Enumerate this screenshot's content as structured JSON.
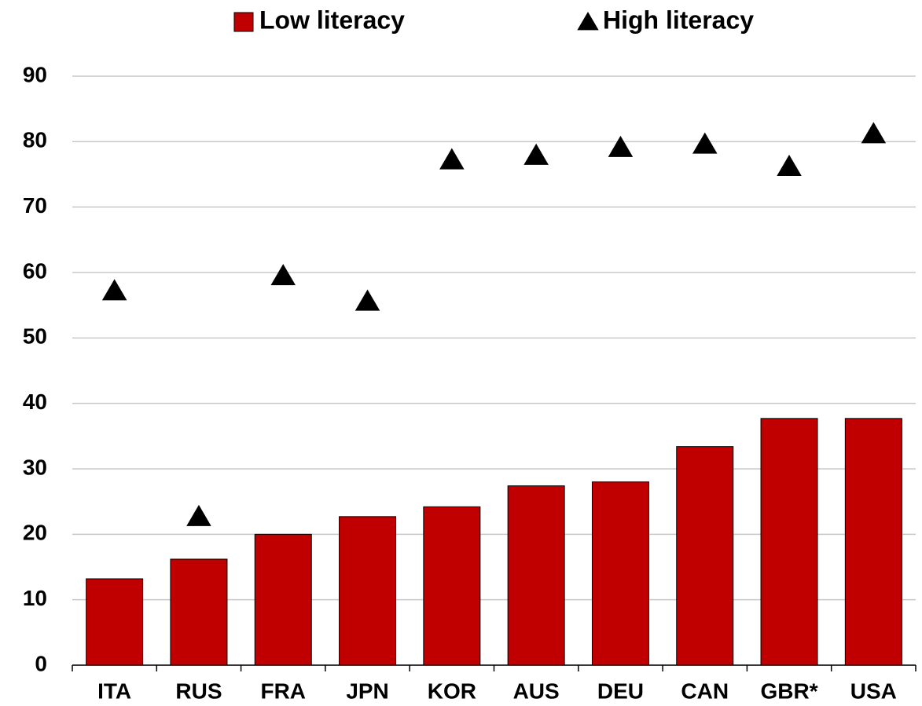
{
  "chart_data": {
    "type": "bar",
    "categories": [
      "ITA",
      "RUS",
      "FRA",
      "JPN",
      "KOR",
      "AUS",
      "DEU",
      "CAN",
      "GBR*",
      "USA"
    ],
    "series": [
      {
        "name": "Low literacy",
        "type": "bar",
        "color": "#c00000",
        "values": [
          13.2,
          16.2,
          20.0,
          22.7,
          24.2,
          27.4,
          28.0,
          33.4,
          37.7,
          37.7
        ]
      },
      {
        "name": "High literacy",
        "type": "scatter",
        "marker": "triangle",
        "color": "#000000",
        "values": [
          57.2,
          22.7,
          59.5,
          55.6,
          77.2,
          77.9,
          79.1,
          79.6,
          76.2,
          81.2
        ]
      }
    ],
    "ylim": [
      0,
      90
    ],
    "yticks": [
      0,
      10,
      20,
      30,
      40,
      50,
      60,
      70,
      80,
      90
    ],
    "grid": true,
    "legend": "top"
  }
}
